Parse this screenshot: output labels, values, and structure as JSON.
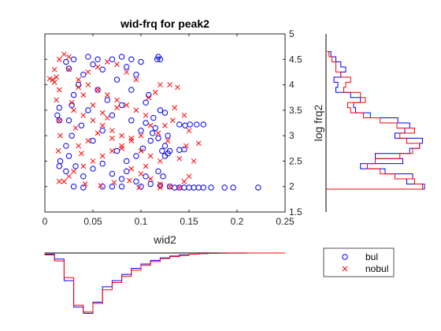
{
  "chart_data": [
    {
      "type": "scatter",
      "title": "wid-frq for peak2",
      "xlabel": "wid2",
      "ylabel": "log frq2",
      "xlim": [
        0,
        0.25
      ],
      "ylim": [
        1.5,
        5
      ],
      "xticks": [
        "0",
        "0.05",
        "0.1",
        "0.15",
        "0.2",
        "0.25"
      ],
      "yticks": [
        "1.5",
        "2",
        "2.5",
        "3",
        "3.5",
        "4",
        "4.5",
        "5"
      ],
      "y_axis_side": "right",
      "grid": false,
      "colors": {
        "bul": "#0000ff",
        "nobul": "#ff0000"
      },
      "series": [
        {
          "name": "bul",
          "marker": "o",
          "color": "#0000ff",
          "points": [
            [
              0.222,
              1.98
            ],
            [
              0.196,
              1.98
            ],
            [
              0.187,
              1.98
            ],
            [
              0.173,
              1.98
            ],
            [
              0.165,
              1.98
            ],
            [
              0.16,
              1.98
            ],
            [
              0.155,
              1.98
            ],
            [
              0.15,
              1.98
            ],
            [
              0.145,
              1.98
            ],
            [
              0.14,
              1.98
            ],
            [
              0.165,
              3.22
            ],
            [
              0.158,
              3.22
            ],
            [
              0.151,
              3.22
            ],
            [
              0.146,
              3.2
            ],
            [
              0.14,
              3.22
            ],
            [
              0.12,
              4.5
            ],
            [
              0.118,
              4.55
            ],
            [
              0.117,
              4.5
            ],
            [
              0.1,
              4.45
            ],
            [
              0.09,
              4.5
            ],
            [
              0.08,
              4.55
            ],
            [
              0.045,
              4.55
            ],
            [
              0.03,
              4.5
            ],
            [
              0.022,
              4.45
            ],
            [
              0.025,
              4.32
            ],
            [
              0.015,
              3.55
            ],
            [
              0.013,
              3.4
            ],
            [
              0.015,
              3.3
            ],
            [
              0.016,
              2.5
            ],
            [
              0.015,
              2.4
            ],
            [
              0.13,
              2.7
            ],
            [
              0.128,
              2.65
            ],
            [
              0.125,
              2.6
            ],
            [
              0.122,
              2.7
            ],
            [
              0.14,
              2.72
            ],
            [
              0.145,
              2.73
            ],
            [
              0.12,
              3.5
            ],
            [
              0.125,
              3.45
            ],
            [
              0.113,
              3.35
            ],
            [
              0.108,
              3.8
            ],
            [
              0.105,
              3.65
            ],
            [
              0.112,
              3.05
            ],
            [
              0.118,
              2.3
            ],
            [
              0.123,
              2.2
            ],
            [
              0.105,
              2.2
            ],
            [
              0.095,
              2.1
            ],
            [
              0.085,
              2.3
            ],
            [
              0.09,
              3.9
            ],
            [
              0.075,
              4.1
            ],
            [
              0.06,
              4.3
            ],
            [
              0.05,
              4.4
            ],
            [
              0.04,
              4.2
            ],
            [
              0.035,
              4.0
            ],
            [
              0.03,
              3.8
            ],
            [
              0.028,
              3.6
            ],
            [
              0.025,
              3.3
            ],
            [
              0.028,
              3.0
            ],
            [
              0.022,
              2.8
            ],
            [
              0.025,
              2.6
            ],
            [
              0.022,
              2.3
            ],
            [
              0.03,
              2.0
            ],
            [
              0.04,
              1.98
            ],
            [
              0.06,
              2.0
            ],
            [
              0.07,
              2.0
            ],
            [
              0.08,
              2.0
            ],
            [
              0.1,
              2.0
            ],
            [
              0.11,
              2.05
            ],
            [
              0.12,
              2.02
            ],
            [
              0.13,
              2.0
            ],
            [
              0.135,
              1.98
            ],
            [
              0.05,
              2.9
            ],
            [
              0.06,
              3.1
            ],
            [
              0.07,
              3.4
            ],
            [
              0.08,
              3.6
            ],
            [
              0.09,
              3.3
            ],
            [
              0.1,
              3.1
            ],
            [
              0.11,
              2.9
            ],
            [
              0.095,
              2.6
            ],
            [
              0.085,
              2.5
            ],
            [
              0.075,
              2.7
            ],
            [
              0.065,
              3.7
            ],
            [
              0.055,
              3.9
            ],
            [
              0.045,
              3.5
            ],
            [
              0.038,
              3.2
            ],
            [
              0.032,
              2.4
            ],
            [
              0.04,
              2.2
            ],
            [
              0.05,
              2.35
            ],
            [
              0.06,
              2.45
            ],
            [
              0.07,
              2.25
            ],
            [
              0.08,
              2.15
            ],
            [
              0.115,
              3.15
            ],
            [
              0.105,
              3.25
            ],
            [
              0.118,
              2.95
            ],
            [
              0.102,
              2.75
            ],
            [
              0.125,
              2.8
            ],
            [
              0.128,
              3.0
            ],
            [
              0.095,
              4.2
            ],
            [
              0.085,
              4.35
            ],
            [
              0.07,
              4.5
            ],
            [
              0.055,
              4.5
            ]
          ]
        },
        {
          "name": "nobul",
          "marker": "x",
          "color": "#ff0000",
          "points": [
            [
              0.005,
              4.12
            ],
            [
              0.008,
              4.1
            ],
            [
              0.01,
              4.05
            ],
            [
              0.012,
              4.15
            ],
            [
              0.015,
              3.9
            ],
            [
              0.012,
              3.7
            ],
            [
              0.015,
              3.3
            ],
            [
              0.016,
              3.0
            ],
            [
              0.014,
              2.7
            ],
            [
              0.015,
              2.1
            ],
            [
              0.01,
              4.3
            ],
            [
              0.015,
              4.5
            ],
            [
              0.02,
              4.6
            ],
            [
              0.025,
              4.55
            ],
            [
              0.13,
              4.0
            ],
            [
              0.12,
              4.0
            ],
            [
              0.138,
              3.95
            ],
            [
              0.115,
              3.85
            ],
            [
              0.135,
              3.55
            ],
            [
              0.145,
              3.4
            ],
            [
              0.15,
              3.1
            ],
            [
              0.147,
              2.8
            ],
            [
              0.16,
              2.85
            ],
            [
              0.14,
              2.55
            ],
            [
              0.155,
              2.5
            ],
            [
              0.15,
              2.2
            ],
            [
              0.145,
              2.1
            ],
            [
              0.13,
              2.0
            ],
            [
              0.14,
              1.98
            ],
            [
              0.12,
              1.98
            ],
            [
              0.025,
              4.3
            ],
            [
              0.035,
              4.1
            ],
            [
              0.045,
              4.0
            ],
            [
              0.055,
              3.9
            ],
            [
              0.065,
              3.8
            ],
            [
              0.075,
              3.7
            ],
            [
              0.085,
              3.6
            ],
            [
              0.095,
              3.5
            ],
            [
              0.105,
              3.4
            ],
            [
              0.11,
              3.2
            ],
            [
              0.1,
              3.0
            ],
            [
              0.09,
              2.9
            ],
            [
              0.08,
              2.8
            ],
            [
              0.07,
              2.7
            ],
            [
              0.06,
              2.6
            ],
            [
              0.05,
              2.5
            ],
            [
              0.04,
              2.4
            ],
            [
              0.03,
              2.3
            ],
            [
              0.025,
              2.2
            ],
            [
              0.02,
              2.1
            ],
            [
              0.03,
              3.5
            ],
            [
              0.04,
              3.4
            ],
            [
              0.05,
              3.3
            ],
            [
              0.06,
              3.2
            ],
            [
              0.07,
              3.1
            ],
            [
              0.08,
              3.0
            ],
            [
              0.09,
              2.95
            ],
            [
              0.1,
              2.7
            ],
            [
              0.11,
              2.6
            ],
            [
              0.12,
              2.5
            ],
            [
              0.035,
              2.8
            ],
            [
              0.045,
              2.9
            ],
            [
              0.055,
              3.05
            ],
            [
              0.065,
              3.35
            ],
            [
              0.075,
              3.55
            ],
            [
              0.04,
              3.8
            ],
            [
              0.05,
              3.6
            ],
            [
              0.06,
              3.45
            ],
            [
              0.07,
              2.95
            ],
            [
              0.08,
              2.75
            ],
            [
              0.09,
              2.35
            ],
            [
              0.1,
              2.25
            ],
            [
              0.11,
              2.15
            ],
            [
              0.12,
              2.05
            ],
            [
              0.105,
              2.4
            ],
            [
              0.095,
              4.1
            ],
            [
              0.085,
              4.25
            ],
            [
              0.075,
              4.4
            ],
            [
              0.065,
              4.45
            ],
            [
              0.055,
              4.35
            ],
            [
              0.045,
              4.25
            ],
            [
              0.035,
              3.95
            ],
            [
              0.028,
              3.65
            ],
            [
              0.032,
              3.15
            ],
            [
              0.038,
              2.65
            ],
            [
              0.042,
              2.05
            ],
            [
              0.058,
              2.02
            ],
            [
              0.072,
              2.08
            ],
            [
              0.088,
              2.12
            ],
            [
              0.098,
              1.98
            ],
            [
              0.125,
              3.2
            ],
            [
              0.118,
              3.05
            ],
            [
              0.128,
              2.9
            ],
            [
              0.133,
              3.3
            ],
            [
              0.108,
              3.75
            ]
          ]
        }
      ],
      "legend": {
        "placement": "bottom-right",
        "entries": [
          "bul",
          "nobul"
        ]
      }
    },
    {
      "type": "histogram",
      "orientation": "horizontal",
      "placement": "right",
      "variable": "log frq2",
      "bins": [
        1.95,
        2.05,
        2.15,
        2.25,
        2.35,
        2.45,
        2.55,
        2.65,
        2.75,
        2.85,
        2.95,
        3.05,
        3.15,
        3.25,
        3.35,
        3.45,
        3.55,
        3.65,
        3.75,
        3.85,
        3.95,
        4.05,
        4.15,
        4.25,
        4.35,
        4.45,
        4.55,
        4.65
      ],
      "series": [
        {
          "name": "bul",
          "color": "#0000ff",
          "values": [
            1.0,
            0.82,
            0.88,
            0.6,
            0.35,
            0.78,
            0.5,
            0.85,
            0.95,
            0.98,
            0.7,
            0.8,
            0.85,
            0.73,
            0.45,
            0.3,
            0.28,
            0.35,
            0.25,
            0.1,
            0.12,
            0.08,
            0.15,
            0.2,
            0.15,
            0.1,
            0.05,
            0.02
          ]
        },
        {
          "name": "nobul",
          "color": "#ff0000",
          "values": [
            0.98,
            0.9,
            0.7,
            0.55,
            0.42,
            0.5,
            0.75,
            0.88,
            0.95,
            0.82,
            0.75,
            0.9,
            0.72,
            0.55,
            0.38,
            0.25,
            0.22,
            0.4,
            0.35,
            0.18,
            0.2,
            0.25,
            0.15,
            0.1,
            0.1,
            0.06,
            0.03,
            0.01
          ]
        }
      ]
    },
    {
      "type": "histogram",
      "orientation": "vertical",
      "placement": "bottom",
      "variable": "wid2",
      "bins": [
        0.0,
        0.01,
        0.02,
        0.03,
        0.04,
        0.05,
        0.06,
        0.07,
        0.08,
        0.09,
        0.1,
        0.11,
        0.12,
        0.13,
        0.14,
        0.15,
        0.16,
        0.17,
        0.18,
        0.19,
        0.2,
        0.21,
        0.22,
        0.23,
        0.24,
        0.25
      ],
      "series": [
        {
          "name": "bul",
          "color": "#0000ff",
          "values": [
            0.02,
            0.1,
            0.45,
            0.88,
            0.98,
            0.8,
            0.55,
            0.45,
            0.35,
            0.25,
            0.18,
            0.12,
            0.08,
            0.05,
            0.03,
            0.02,
            0.01,
            0.005,
            0.003,
            0.002,
            0.001,
            0,
            0,
            0,
            0
          ]
        },
        {
          "name": "nobul",
          "color": "#ff0000",
          "values": [
            0.03,
            0.13,
            0.4,
            0.85,
            0.96,
            0.82,
            0.6,
            0.48,
            0.38,
            0.28,
            0.2,
            0.14,
            0.09,
            0.06,
            0.04,
            0.02,
            0.01,
            0.006,
            0.003,
            0.002,
            0.001,
            0,
            0,
            0,
            0
          ]
        }
      ]
    }
  ]
}
